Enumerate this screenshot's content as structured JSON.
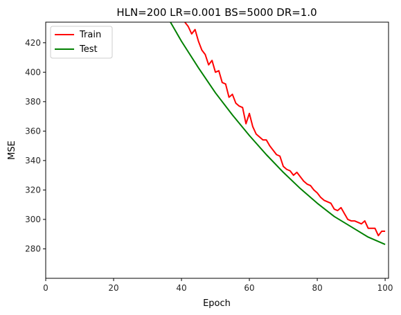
{
  "chart_data": {
    "type": "line",
    "title": "HLN=200 LR=0.001 BS=5000 DR=1.0",
    "xlabel": "Epoch",
    "ylabel": "MSE",
    "xlim": [
      0,
      101
    ],
    "ylim": [
      260,
      434
    ],
    "xticks": [
      0,
      20,
      40,
      60,
      80,
      100
    ],
    "yticks": [
      280,
      300,
      320,
      340,
      360,
      380,
      400,
      420
    ],
    "grid": false,
    "legend_position": "top-left",
    "series": [
      {
        "name": "Train",
        "color": "#ff0000",
        "x": [
          36,
          38,
          40,
          41,
          42,
          43,
          44,
          45,
          46,
          47,
          48,
          49,
          50,
          51,
          52,
          53,
          54,
          55,
          56,
          57,
          58,
          59,
          60,
          61,
          62,
          63,
          64,
          65,
          66,
          67,
          68,
          69,
          70,
          71,
          72,
          73,
          74,
          75,
          76,
          77,
          78,
          79,
          80,
          81,
          82,
          83,
          84,
          85,
          86,
          87,
          88,
          89,
          90,
          91,
          92,
          93,
          94,
          95,
          96,
          97,
          98,
          99,
          100
        ],
        "y": [
          449,
          443,
          437,
          434,
          431,
          426,
          429,
          421,
          415,
          412,
          405,
          408,
          400,
          401,
          393,
          392,
          383,
          385,
          379,
          377,
          376,
          365,
          372,
          363,
          358,
          356,
          354,
          354,
          350,
          347,
          344,
          343,
          336,
          334,
          333,
          330,
          332,
          329,
          326,
          324,
          323,
          320,
          318,
          315,
          313,
          312,
          311,
          307,
          306,
          308,
          304,
          300,
          299,
          299,
          298,
          297,
          299,
          294,
          294,
          294,
          289,
          292,
          292
        ]
      },
      {
        "name": "Test",
        "color": "#008000",
        "x": [
          36,
          40,
          45,
          50,
          55,
          60,
          65,
          70,
          75,
          80,
          85,
          90,
          95,
          100
        ],
        "y": [
          437,
          421,
          403,
          386,
          371,
          357,
          344,
          332,
          321,
          311,
          302,
          295,
          288,
          283
        ]
      }
    ]
  }
}
